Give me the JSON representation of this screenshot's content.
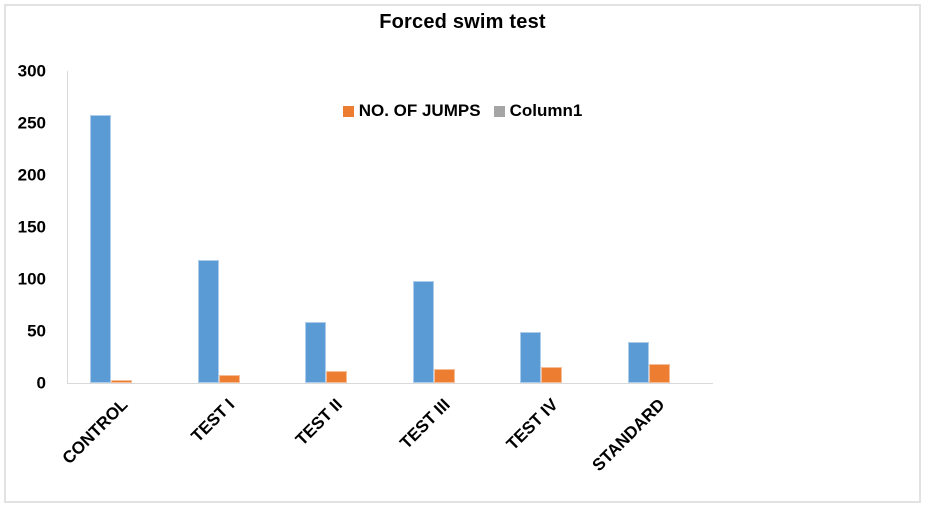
{
  "chart_data": {
    "type": "bar",
    "title": "Forced swim test",
    "categories": [
      "CONTROL",
      "TEST I",
      "TEST II",
      "TEST III",
      "TEST IV",
      "STANDARD"
    ],
    "series": [
      {
        "name": "",
        "in_legend": false,
        "color": "#5b9bd5",
        "values": [
          258,
          118,
          59,
          98,
          49,
          39
        ]
      },
      {
        "name": "NO. OF JUMPS",
        "in_legend": true,
        "color": "#ed7d31",
        "values": [
          3,
          8,
          12,
          13,
          15,
          18
        ]
      },
      {
        "name": "Column1",
        "in_legend": true,
        "color": "#a5a5a5",
        "values": [
          0,
          0,
          0,
          0,
          0,
          0
        ]
      }
    ],
    "ylim": [
      0,
      300
    ],
    "yticks": [
      0,
      50,
      100,
      150,
      200,
      250,
      300
    ],
    "xlabel": "",
    "ylabel": "",
    "grid": false,
    "legend_position": "top-center-inside",
    "x_tick_label_rotation_deg": 45,
    "axis_line_color": "#d9d9d9",
    "background_color": "#ffffff"
  }
}
